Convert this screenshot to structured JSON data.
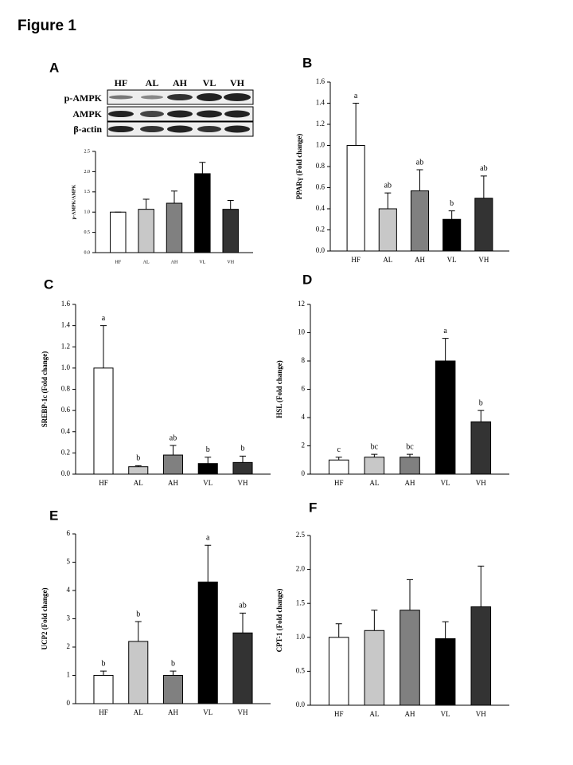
{
  "figure_title": "Figure 1",
  "blot": {
    "lanes": [
      "HF",
      "AL",
      "AH",
      "VL",
      "VH"
    ],
    "rows": [
      "p-AMPK",
      "AMPK",
      "β-actin"
    ]
  },
  "chart_data": [
    {
      "panel": "A",
      "type": "bar",
      "ylabel": "p-AMPK/AMPK",
      "categories": [
        "HF",
        "AL",
        "AH",
        "VL",
        "VH"
      ],
      "values": [
        1.0,
        1.07,
        1.22,
        1.95,
        1.07
      ],
      "errors": [
        0,
        0.25,
        0.3,
        0.28,
        0.22
      ],
      "colors": [
        "#ffffff",
        "#c8c8c8",
        "#808080",
        "#000000",
        "#333333"
      ],
      "ylim": [
        0,
        2.5
      ],
      "yticks": [
        {
          "value": 0,
          "label": "0.0"
        },
        0.5,
        {
          "value": 1,
          "label": "1.0"
        },
        1.5,
        {
          "value": 2,
          "label": "2.0"
        },
        2.5
      ]
    },
    {
      "panel": "B",
      "type": "bar",
      "ylabel": "PPARγ (Fold change)",
      "categories": [
        "HF",
        "AL",
        "AH",
        "VL",
        "VH"
      ],
      "values": [
        1.0,
        0.4,
        0.57,
        0.3,
        0.5
      ],
      "errors": [
        0.4,
        0.15,
        0.2,
        0.08,
        0.21
      ],
      "annotations": [
        "a",
        "ab",
        "ab",
        "b",
        "ab"
      ],
      "colors": [
        "#ffffff",
        "#c8c8c8",
        "#808080",
        "#000000",
        "#333333"
      ],
      "ylim": [
        0,
        1.6
      ],
      "yticks": [
        {
          "value": 0,
          "label": "0.0"
        },
        0.2,
        0.4,
        0.6,
        0.8,
        {
          "value": 1,
          "label": "1.0"
        },
        1.2,
        1.4,
        1.6
      ]
    },
    {
      "panel": "C",
      "type": "bar",
      "ylabel": "SREBP-1c (Fold change)",
      "categories": [
        "HF",
        "AL",
        "AH",
        "VL",
        "VH"
      ],
      "values": [
        1.0,
        0.07,
        0.18,
        0.1,
        0.11
      ],
      "errors": [
        0.4,
        0.01,
        0.09,
        0.06,
        0.06
      ],
      "annotations": [
        "a",
        "b",
        "ab",
        "b",
        "b"
      ],
      "colors": [
        "#ffffff",
        "#c8c8c8",
        "#808080",
        "#000000",
        "#333333"
      ],
      "ylim": [
        0,
        1.6
      ],
      "yticks": [
        {
          "value": 0,
          "label": "0.0"
        },
        0.2,
        0.4,
        0.6,
        0.8,
        {
          "value": 1,
          "label": "1.0"
        },
        1.2,
        1.4,
        1.6
      ]
    },
    {
      "panel": "D",
      "type": "bar",
      "ylabel": "HSL (Fold change)",
      "categories": [
        "HF",
        "AL",
        "AH",
        "VL",
        "VH"
      ],
      "values": [
        1.0,
        1.2,
        1.2,
        8.0,
        3.7
      ],
      "errors": [
        0.2,
        0.2,
        0.2,
        1.6,
        0.8
      ],
      "annotations": [
        "c",
        "bc",
        "bc",
        "a",
        "b"
      ],
      "colors": [
        "#ffffff",
        "#c8c8c8",
        "#808080",
        "#000000",
        "#333333"
      ],
      "ylim": [
        0,
        12
      ],
      "yticks": [
        0,
        2,
        4,
        6,
        8,
        10,
        12
      ]
    },
    {
      "panel": "E",
      "type": "bar",
      "ylabel": "UCP2 (Fold change)",
      "categories": [
        "HF",
        "AL",
        "AH",
        "VL",
        "VH"
      ],
      "values": [
        1.0,
        2.2,
        1.0,
        4.3,
        2.5
      ],
      "errors": [
        0.15,
        0.7,
        0.15,
        1.3,
        0.7
      ],
      "annotations": [
        "b",
        "b",
        "b",
        "a",
        "ab"
      ],
      "colors": [
        "#ffffff",
        "#c8c8c8",
        "#808080",
        "#000000",
        "#333333"
      ],
      "ylim": [
        0,
        6
      ],
      "yticks": [
        0,
        1,
        2,
        3,
        4,
        5,
        6
      ]
    },
    {
      "panel": "F",
      "type": "bar",
      "ylabel": "CPT-1 (Fold change)",
      "categories": [
        "HF",
        "AL",
        "AH",
        "VL",
        "VH"
      ],
      "values": [
        1.0,
        1.1,
        1.4,
        0.98,
        1.45
      ],
      "errors": [
        0.2,
        0.3,
        0.45,
        0.25,
        0.6
      ],
      "colors": [
        "#ffffff",
        "#c8c8c8",
        "#808080",
        "#000000",
        "#333333"
      ],
      "ylim": [
        0,
        2.5
      ],
      "yticks": [
        {
          "value": 0,
          "label": "0.0"
        },
        0.5,
        {
          "value": 1,
          "label": "1.0"
        },
        1.5,
        {
          "value": 2,
          "label": "2.0"
        },
        2.5
      ]
    }
  ]
}
